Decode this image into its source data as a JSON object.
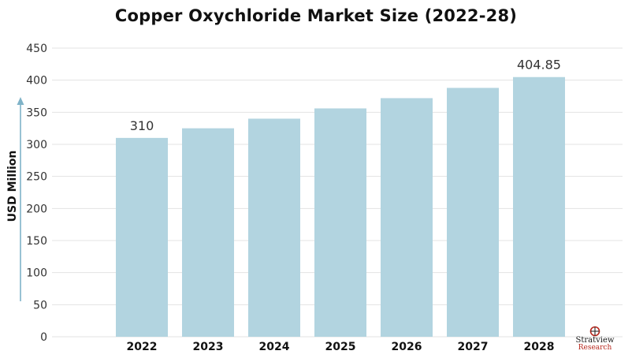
{
  "chart_data": {
    "type": "bar",
    "title": "Copper Oxychloride Market Size (2022-28)",
    "xlabel": "",
    "ylabel": "USD Million",
    "categories": [
      "2022",
      "2023",
      "2024",
      "2025",
      "2026",
      "2027",
      "2028"
    ],
    "values": [
      310,
      325,
      340,
      356,
      372,
      388,
      404.85
    ],
    "data_labels": [
      "310",
      "",
      "",
      "",
      "",
      "",
      "404.85"
    ],
    "ylim": [
      0,
      450
    ],
    "yticks": [
      0,
      50,
      100,
      150,
      200,
      250,
      300,
      350,
      400,
      450
    ],
    "grid": true,
    "bar_color": "#b2d4e0",
    "grid_color": "#e3e3e3",
    "arrow_color": "#7fb3c8"
  },
  "logo": {
    "name": "Stratview",
    "sub": "Research"
  }
}
